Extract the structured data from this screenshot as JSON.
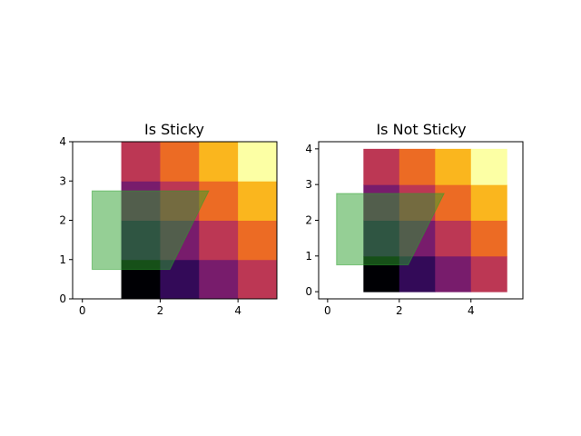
{
  "chart_data": [
    {
      "type": "heatmap",
      "title": "Is Sticky",
      "xlabel": "",
      "ylabel": "",
      "xlim": [
        -0.25,
        5
      ],
      "ylim": [
        0,
        4
      ],
      "x_ticks": [
        0,
        2,
        4
      ],
      "y_ticks": [
        0,
        1,
        2,
        3,
        4
      ],
      "grid": false,
      "image": {
        "extent": [
          1,
          5,
          0,
          4
        ],
        "rows": 4,
        "cols": 4,
        "colormap": "inferno",
        "values_bottom_to_top": [
          [
            0,
            1,
            2,
            3
          ],
          [
            1,
            2,
            3,
            4
          ],
          [
            2,
            3,
            4,
            5
          ],
          [
            3,
            4,
            5,
            6
          ]
        ],
        "value_range": [
          0,
          6
        ]
      },
      "polygon": {
        "points": [
          [
            0.25,
            0.75
          ],
          [
            2.25,
            0.75
          ],
          [
            3.25,
            2.75
          ],
          [
            0.25,
            2.75
          ]
        ],
        "fill": "#2ca02c",
        "alpha": 0.5
      }
    },
    {
      "type": "heatmap",
      "title": "Is Not Sticky",
      "xlabel": "",
      "ylabel": "",
      "xlim": [
        -0.25,
        5.45
      ],
      "ylim": [
        -0.2,
        4.2
      ],
      "x_ticks": [
        0,
        2,
        4
      ],
      "y_ticks": [
        0,
        1,
        2,
        3,
        4
      ],
      "grid": false,
      "image": {
        "extent": [
          1,
          5,
          0,
          4
        ],
        "rows": 4,
        "cols": 4,
        "colormap": "inferno",
        "values_bottom_to_top": [
          [
            0,
            1,
            2,
            3
          ],
          [
            1,
            2,
            3,
            4
          ],
          [
            2,
            3,
            4,
            5
          ],
          [
            3,
            4,
            5,
            6
          ]
        ],
        "value_range": [
          0,
          6
        ]
      },
      "polygon": {
        "points": [
          [
            0.25,
            0.75
          ],
          [
            2.25,
            0.75
          ],
          [
            3.25,
            2.75
          ],
          [
            0.25,
            2.75
          ]
        ],
        "fill": "#2ca02c",
        "alpha": 0.5
      }
    }
  ]
}
